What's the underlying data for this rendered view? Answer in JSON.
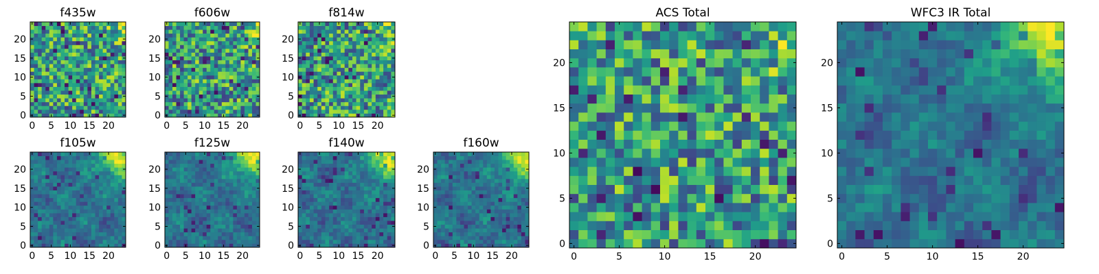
{
  "chart_data": [
    {
      "type": "heatmap",
      "title": "f435w",
      "colormap": "viridis",
      "xlim": [
        0,
        24
      ],
      "ylim": [
        0,
        24
      ],
      "xticks": [
        0,
        5,
        10,
        15,
        20
      ],
      "yticks": [
        0,
        5,
        10,
        15,
        20
      ],
      "texture": "uniform",
      "seed": 11
    },
    {
      "type": "heatmap",
      "title": "f606w",
      "colormap": "viridis",
      "xlim": [
        0,
        24
      ],
      "ylim": [
        0,
        24
      ],
      "xticks": [
        0,
        5,
        10,
        15,
        20
      ],
      "yticks": [
        0,
        5,
        10,
        15,
        20
      ],
      "texture": "uniform",
      "seed": 23
    },
    {
      "type": "heatmap",
      "title": "f814w",
      "colormap": "viridis",
      "xlim": [
        0,
        24
      ],
      "ylim": [
        0,
        24
      ],
      "xticks": [
        0,
        5,
        10,
        15,
        20
      ],
      "yticks": [
        0,
        5,
        10,
        15,
        20
      ],
      "texture": "uniform",
      "seed": 37
    },
    {
      "type": "heatmap",
      "title": "f105w",
      "colormap": "viridis",
      "xlim": [
        0,
        24
      ],
      "ylim": [
        0,
        24
      ],
      "xticks": [
        0,
        5,
        10,
        15,
        20
      ],
      "yticks": [
        0,
        5,
        10,
        15,
        20
      ],
      "texture": "smooth",
      "seed": 41
    },
    {
      "type": "heatmap",
      "title": "f125w",
      "colormap": "viridis",
      "xlim": [
        0,
        24
      ],
      "ylim": [
        0,
        24
      ],
      "xticks": [
        0,
        5,
        10,
        15,
        20
      ],
      "yticks": [
        0,
        5,
        10,
        15,
        20
      ],
      "texture": "smooth",
      "seed": 53
    },
    {
      "type": "heatmap",
      "title": "f140w",
      "colormap": "viridis",
      "xlim": [
        0,
        24
      ],
      "ylim": [
        0,
        24
      ],
      "xticks": [
        0,
        5,
        10,
        15,
        20
      ],
      "yticks": [
        0,
        5,
        10,
        15,
        20
      ],
      "texture": "smooth",
      "seed": 67
    },
    {
      "type": "heatmap",
      "title": "f160w",
      "colormap": "viridis",
      "xlim": [
        0,
        24
      ],
      "ylim": [
        0,
        24
      ],
      "xticks": [
        0,
        5,
        10,
        15,
        20
      ],
      "yticks": [
        0,
        5,
        10,
        15,
        20
      ],
      "texture": "smooth",
      "seed": 79
    },
    {
      "type": "heatmap",
      "title": "ACS Total",
      "colormap": "viridis",
      "xlim": [
        0,
        24
      ],
      "ylim": [
        0,
        24
      ],
      "xticks": [
        0,
        5,
        10,
        15,
        20
      ],
      "yticks": [
        0,
        5,
        10,
        15,
        20
      ],
      "texture": "uniform",
      "seed": 83
    },
    {
      "type": "heatmap",
      "title": "WFC3 IR Total",
      "colormap": "viridis",
      "xlim": [
        0,
        24
      ],
      "ylim": [
        0,
        24
      ],
      "xticks": [
        0,
        5,
        10,
        15,
        20
      ],
      "yticks": [
        0,
        5,
        10,
        15,
        20
      ],
      "texture": "smooth",
      "seed": 97
    }
  ]
}
